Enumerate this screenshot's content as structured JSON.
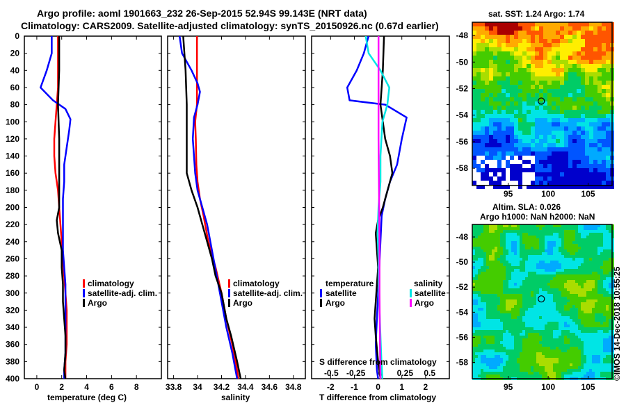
{
  "header": {
    "title_line1": "Argo profile: aoml 1901663_232 26-Sep-2015 52.94S 99.143E (NRT data)",
    "title_line2": "Climatology: CARS2009. Satellite-adjusted climatology: synTS_20150926.nc (0.67d earlier)"
  },
  "depth_ticks": [
    "0",
    "20",
    "40",
    "60",
    "80",
    "100",
    "120",
    "140",
    "160",
    "180",
    "200",
    "220",
    "240",
    "260",
    "280",
    "300",
    "320",
    "340",
    "360",
    "380",
    "400"
  ],
  "colors": {
    "climatology": "#ff0000",
    "satellite": "#0000ff",
    "argo": "#000000",
    "satellite_salinity": "#00e5e5",
    "salinity": "#ff00ff"
  },
  "chart_data": [
    {
      "type": "line",
      "name": "temperature",
      "xlabel": "temperature (deg C)",
      "ylabel": "depth",
      "xlim": [
        -1,
        10
      ],
      "ylim": [
        400,
        0
      ],
      "x_ticks": [
        "0",
        "2",
        "4",
        "6",
        "8"
      ],
      "legend": [
        "climatology",
        "satellite-adj. clim.",
        "Argo"
      ],
      "legend_position": "lower-right",
      "series": [
        {
          "name": "climatology",
          "color": "#ff0000",
          "points": [
            [
              1.7,
              0
            ],
            [
              1.7,
              20
            ],
            [
              1.7,
              60
            ],
            [
              1.6,
              80
            ],
            [
              1.5,
              100
            ],
            [
              1.4,
              120
            ],
            [
              1.4,
              140
            ],
            [
              1.5,
              160
            ],
            [
              1.7,
              180
            ],
            [
              1.8,
              200
            ],
            [
              1.9,
              220
            ],
            [
              2.0,
              240
            ],
            [
              2.1,
              260
            ],
            [
              2.2,
              280
            ],
            [
              2.3,
              300
            ],
            [
              2.4,
              320
            ],
            [
              2.4,
              340
            ],
            [
              2.4,
              360
            ],
            [
              2.3,
              380
            ],
            [
              2.3,
              400
            ]
          ]
        },
        {
          "name": "satellite-adj. clim.",
          "color": "#0000ff",
          "points": [
            [
              1.2,
              0
            ],
            [
              1.2,
              20
            ],
            [
              0.8,
              40
            ],
            [
              0.3,
              60
            ],
            [
              1.3,
              75
            ],
            [
              2.3,
              85
            ],
            [
              2.7,
              97
            ],
            [
              2.6,
              110
            ],
            [
              2.4,
              130
            ],
            [
              2.2,
              150
            ],
            [
              2.2,
              170
            ],
            [
              2.1,
              190
            ],
            [
              2.1,
              210
            ],
            [
              2.1,
              230
            ],
            [
              2.1,
              250
            ],
            [
              2.2,
              270
            ],
            [
              2.3,
              290
            ],
            [
              2.3,
              310
            ],
            [
              2.3,
              330
            ],
            [
              2.3,
              350
            ],
            [
              2.3,
              370
            ],
            [
              2.2,
              390
            ],
            [
              2.2,
              400
            ]
          ]
        },
        {
          "name": "Argo",
          "color": "#000000",
          "points": [
            [
              1.8,
              0
            ],
            [
              1.8,
              40
            ],
            [
              1.7,
              80
            ],
            [
              1.8,
              120
            ],
            [
              1.8,
              160
            ],
            [
              1.8,
              200
            ],
            [
              1.6,
              215
            ],
            [
              1.7,
              230
            ],
            [
              2.0,
              250
            ],
            [
              2.0,
              270
            ],
            [
              2.1,
              290
            ],
            [
              2.1,
              310
            ],
            [
              2.2,
              330
            ],
            [
              2.3,
              350
            ],
            [
              2.3,
              370
            ],
            [
              2.2,
              390
            ],
            [
              2.3,
              400
            ]
          ]
        }
      ]
    },
    {
      "type": "line",
      "name": "salinity",
      "xlabel": "salinity",
      "ylabel": "depth",
      "xlim": [
        33.75,
        34.9
      ],
      "ylim": [
        400,
        0
      ],
      "x_ticks": [
        "33.8",
        "34",
        "34.2",
        "34.4",
        "34.6",
        "34.8"
      ],
      "legend": [
        "climatology",
        "satellite-adj. clim.",
        "Argo"
      ],
      "legend_position": "lower-right",
      "series": [
        {
          "name": "climatology",
          "color": "#ff0000",
          "points": [
            [
              33.995,
              0
            ],
            [
              33.995,
              40
            ],
            [
              33.995,
              80
            ],
            [
              33.98,
              100
            ],
            [
              33.985,
              120
            ],
            [
              33.99,
              150
            ],
            [
              34.0,
              170
            ],
            [
              34.02,
              190
            ],
            [
              34.05,
              210
            ],
            [
              34.09,
              240
            ],
            [
              34.15,
              270
            ],
            [
              34.2,
              300
            ],
            [
              34.24,
              330
            ],
            [
              34.29,
              360
            ],
            [
              34.33,
              390
            ],
            [
              34.34,
              400
            ]
          ]
        },
        {
          "name": "satellite-adj. clim.",
          "color": "#0000ff",
          "points": [
            [
              33.85,
              0
            ],
            [
              33.87,
              20
            ],
            [
              33.95,
              40
            ],
            [
              34.0,
              55
            ],
            [
              34.02,
              65
            ],
            [
              34.0,
              80
            ],
            [
              33.97,
              95
            ],
            [
              33.96,
              120
            ],
            [
              33.97,
              140
            ],
            [
              33.98,
              160
            ],
            [
              34.0,
              180
            ],
            [
              34.04,
              200
            ],
            [
              34.08,
              220
            ],
            [
              34.12,
              250
            ],
            [
              34.16,
              280
            ],
            [
              34.2,
              310
            ],
            [
              34.24,
              340
            ],
            [
              34.29,
              370
            ],
            [
              34.33,
              400
            ]
          ]
        },
        {
          "name": "Argo",
          "color": "#000000",
          "points": [
            [
              33.88,
              0
            ],
            [
              33.9,
              40
            ],
            [
              33.91,
              80
            ],
            [
              33.91,
              120
            ],
            [
              33.91,
              160
            ],
            [
              33.95,
              180
            ],
            [
              34.0,
              200
            ],
            [
              34.04,
              220
            ],
            [
              34.08,
              240
            ],
            [
              34.12,
              260
            ],
            [
              34.15,
              280
            ],
            [
              34.2,
              300
            ],
            [
              34.24,
              330
            ],
            [
              34.28,
              350
            ],
            [
              34.33,
              380
            ],
            [
              34.36,
              400
            ]
          ]
        }
      ]
    },
    {
      "type": "line",
      "name": "difference",
      "xlabel": "T difference from climatology",
      "top_label": "S difference from climatology",
      "ylabel": "depth",
      "xlim": [
        -2.8,
        3
      ],
      "ylim": [
        400,
        0
      ],
      "x_ticks": [
        "-2",
        "-1",
        "0",
        "1",
        "2"
      ],
      "s_ticks": [
        "-0.5",
        "-0.25",
        "0",
        "0.25",
        "0.5"
      ],
      "legend_temperature": {
        "heading": "temperature",
        "items": [
          "satellite",
          "Argo"
        ]
      },
      "legend_salinity": {
        "heading": "salinity",
        "items": [
          "satellite",
          "Argo"
        ]
      },
      "series": [
        {
          "name": "temperature satellite",
          "color": "#0000ff",
          "points": [
            [
              -0.4,
              0
            ],
            [
              -0.6,
              20
            ],
            [
              -0.9,
              40
            ],
            [
              -1.3,
              60
            ],
            [
              -1.2,
              75
            ],
            [
              0.3,
              80
            ],
            [
              1.2,
              95
            ],
            [
              1.0,
              120
            ],
            [
              0.8,
              150
            ],
            [
              0.5,
              170
            ],
            [
              0.3,
              190
            ],
            [
              0.15,
              210
            ],
            [
              0.1,
              240
            ],
            [
              0.05,
              270
            ],
            [
              0,
              300
            ],
            [
              -0.05,
              330
            ],
            [
              -0.1,
              360
            ],
            [
              -0.05,
              390
            ],
            [
              0,
              400
            ]
          ]
        },
        {
          "name": "temperature Argo",
          "color": "#000000",
          "points": [
            [
              0.25,
              0
            ],
            [
              0.2,
              40
            ],
            [
              0.1,
              80
            ],
            [
              0.3,
              120
            ],
            [
              0.5,
              140
            ],
            [
              0.6,
              160
            ],
            [
              0.4,
              180
            ],
            [
              0.2,
              200
            ],
            [
              0,
              215
            ],
            [
              -0.1,
              230
            ],
            [
              -0.05,
              250
            ],
            [
              0,
              270
            ],
            [
              -0.05,
              290
            ],
            [
              -0.1,
              310
            ],
            [
              -0.15,
              330
            ],
            [
              -0.1,
              350
            ],
            [
              0,
              380
            ],
            [
              0.1,
              400
            ]
          ]
        },
        {
          "name": "salinity satellite",
          "color": "#00e5e5",
          "points": [
            [
              -0.15,
              0
            ],
            [
              -0.12,
              20
            ],
            [
              0,
              40
            ],
            [
              0.09,
              60
            ],
            [
              0.07,
              80
            ],
            [
              0.02,
              100
            ],
            [
              0.01,
              120
            ],
            [
              0.0,
              140
            ],
            [
              0.0,
              170
            ],
            [
              -0.02,
              200
            ],
            [
              -0.03,
              230
            ],
            [
              -0.02,
              260
            ],
            [
              -0.02,
              290
            ],
            [
              -0.01,
              320
            ],
            [
              0.0,
              350
            ],
            [
              0.01,
              380
            ],
            [
              0.02,
              400
            ]
          ]
        },
        {
          "name": "salinity Argo",
          "color": "#ff00ff",
          "points": [
            [
              -0.02,
              0
            ],
            [
              -0.02,
              60
            ],
            [
              -0.02,
              120
            ],
            [
              -0.015,
              180
            ],
            [
              -0.01,
              240
            ],
            [
              -0.01,
              300
            ],
            [
              -0.005,
              360
            ],
            [
              0,
              400
            ]
          ]
        }
      ]
    }
  ],
  "maps": {
    "sst_title": "sat. SST: 1.24 Argo: 1.74",
    "sla_title_line1": "Altim. SLA: 0.026",
    "sla_title_line2": "Argo h1000: NaN h2000: NaN",
    "lat_ticks": [
      "-48",
      "-50",
      "-52",
      "-54",
      "-56",
      "-58"
    ],
    "lon_ticks": [
      "95",
      "100",
      "105"
    ],
    "float_lon": 99.143,
    "float_lat": -52.94
  },
  "credit": "©IMOS 14-Dec-2018 10:55:25"
}
